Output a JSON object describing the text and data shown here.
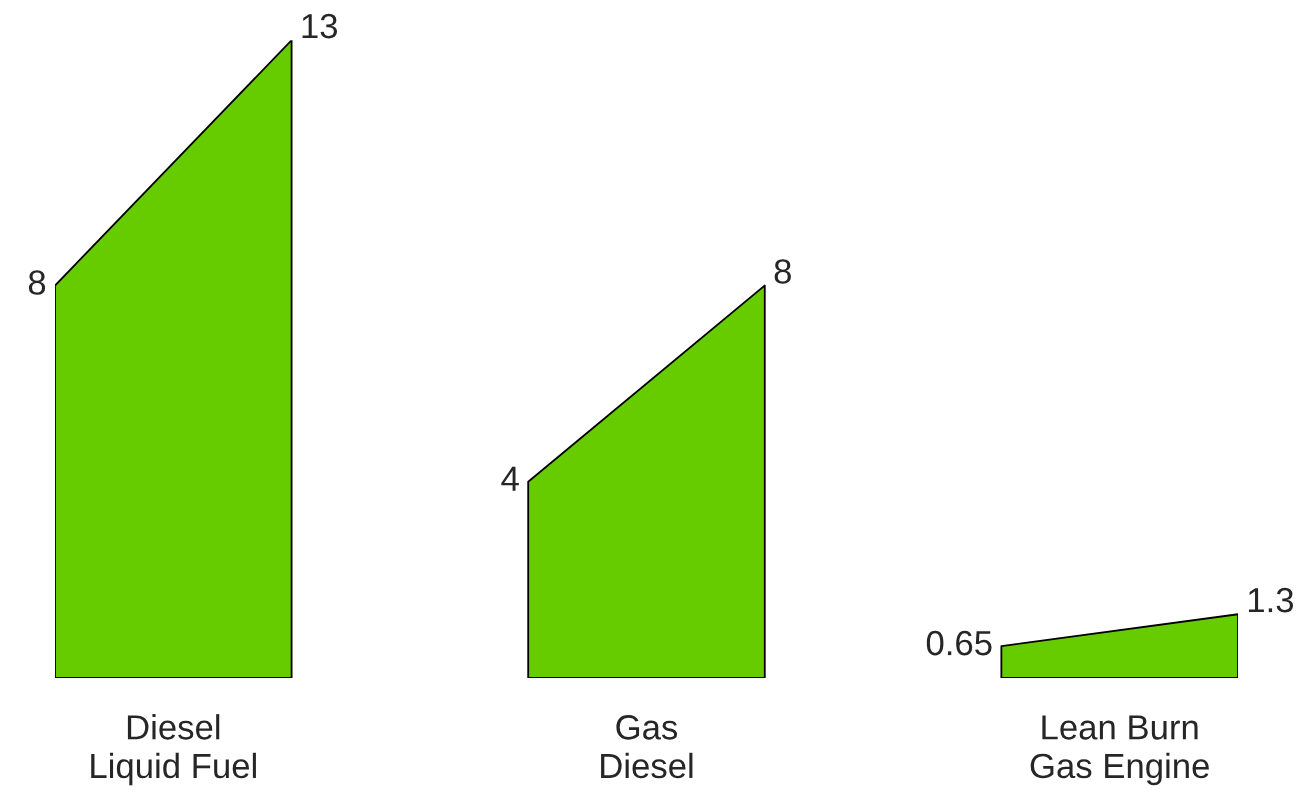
{
  "chart_data": {
    "type": "other",
    "categories": [
      "Diesel\nLiquid Fuel",
      "Gas\nDiesel",
      "Lean Burn\nGas Engine"
    ],
    "series": [
      {
        "values": [
          8,
          4,
          0.65
        ]
      },
      {
        "values": [
          13,
          8,
          1.3
        ]
      }
    ],
    "colors": [
      "#66cc00",
      "#66cc00",
      "#66cc00"
    ],
    "data_labels": true
  }
}
